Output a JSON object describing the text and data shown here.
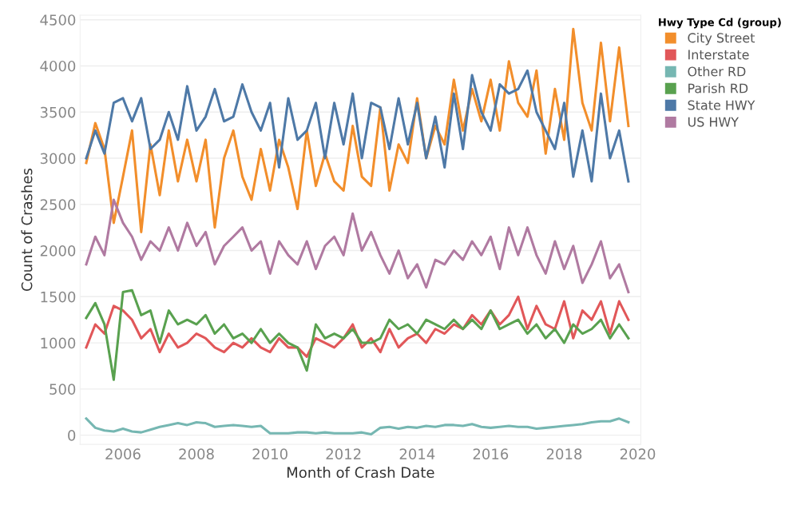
{
  "chart_data": {
    "type": "line",
    "xlabel": "Month of Crash Date",
    "ylabel": "Count of Crashes",
    "legend_title": "Hwy Type Cd (group)",
    "x": [
      "2005-01",
      "2005-04",
      "2005-07",
      "2005-10",
      "2006-01",
      "2006-04",
      "2006-07",
      "2006-10",
      "2007-01",
      "2007-04",
      "2007-07",
      "2007-10",
      "2008-01",
      "2008-04",
      "2008-07",
      "2008-10",
      "2009-01",
      "2009-04",
      "2009-07",
      "2009-10",
      "2010-01",
      "2010-04",
      "2010-07",
      "2010-10",
      "2011-01",
      "2011-04",
      "2011-07",
      "2011-10",
      "2012-01",
      "2012-04",
      "2012-07",
      "2012-10",
      "2013-01",
      "2013-04",
      "2013-07",
      "2013-10",
      "2014-01",
      "2014-04",
      "2014-07",
      "2014-10",
      "2015-01",
      "2015-04",
      "2015-07",
      "2015-10",
      "2016-01",
      "2016-04",
      "2016-07",
      "2016-10",
      "2017-01",
      "2017-04",
      "2017-07",
      "2017-10",
      "2018-01",
      "2018-04",
      "2018-07",
      "2018-10",
      "2019-01",
      "2019-04",
      "2019-07",
      "2019-10"
    ],
    "series": [
      {
        "name": "City Street",
        "color": "#f28e2b",
        "values": [
          2950,
          3380,
          3100,
          2300,
          2800,
          3300,
          2200,
          3150,
          2600,
          3300,
          2750,
          3200,
          2750,
          3200,
          2250,
          3000,
          3300,
          2800,
          2550,
          3100,
          2650,
          3200,
          2900,
          2450,
          3300,
          2700,
          3050,
          2750,
          2650,
          3350,
          2800,
          2700,
          3550,
          2650,
          3150,
          2950,
          3650,
          3000,
          3350,
          3150,
          3850,
          3300,
          3750,
          3400,
          3850,
          3300,
          4050,
          3600,
          3450,
          3950,
          3050,
          3750,
          3200,
          4400,
          3600,
          3300,
          4250,
          3400,
          4200,
          3350
        ]
      },
      {
        "name": "Interstate",
        "color": "#e15759",
        "values": [
          950,
          1200,
          1100,
          1400,
          1350,
          1250,
          1050,
          1150,
          900,
          1100,
          950,
          1000,
          1100,
          1050,
          950,
          900,
          1000,
          950,
          1050,
          950,
          900,
          1050,
          950,
          950,
          850,
          1050,
          1000,
          950,
          1050,
          1200,
          950,
          1050,
          900,
          1150,
          950,
          1050,
          1100,
          1000,
          1150,
          1100,
          1200,
          1150,
          1300,
          1200,
          1350,
          1200,
          1300,
          1500,
          1150,
          1400,
          1200,
          1150,
          1450,
          1050,
          1350,
          1250,
          1450,
          1100,
          1450,
          1250
        ]
      },
      {
        "name": "Other RD",
        "color": "#76b7b2",
        "values": [
          180,
          80,
          50,
          40,
          70,
          40,
          30,
          60,
          90,
          110,
          130,
          110,
          140,
          130,
          90,
          100,
          110,
          100,
          90,
          100,
          20,
          20,
          20,
          30,
          30,
          20,
          30,
          20,
          20,
          20,
          30,
          10,
          80,
          90,
          70,
          90,
          80,
          100,
          90,
          110,
          110,
          100,
          120,
          90,
          80,
          90,
          100,
          90,
          90,
          70,
          80,
          90,
          100,
          110,
          120,
          140,
          150,
          150,
          180,
          140
        ]
      },
      {
        "name": "Parish RD",
        "color": "#59a14f",
        "values": [
          1270,
          1430,
          1200,
          600,
          1550,
          1570,
          1300,
          1350,
          1000,
          1350,
          1200,
          1250,
          1200,
          1300,
          1100,
          1200,
          1050,
          1100,
          1000,
          1150,
          1000,
          1100,
          1000,
          950,
          700,
          1200,
          1050,
          1100,
          1050,
          1150,
          1000,
          1000,
          1050,
          1250,
          1150,
          1200,
          1100,
          1250,
          1200,
          1150,
          1250,
          1150,
          1250,
          1150,
          1350,
          1150,
          1200,
          1250,
          1100,
          1200,
          1050,
          1150,
          1000,
          1200,
          1100,
          1150,
          1250,
          1050,
          1200,
          1050
        ]
      },
      {
        "name": "State HWY",
        "color": "#4e79a7",
        "values": [
          3000,
          3300,
          3050,
          3600,
          3650,
          3400,
          3650,
          3100,
          3200,
          3500,
          3200,
          3780,
          3300,
          3450,
          3750,
          3400,
          3450,
          3800,
          3500,
          3300,
          3600,
          2900,
          3650,
          3200,
          3300,
          3600,
          3000,
          3600,
          3150,
          3700,
          3000,
          3600,
          3550,
          3100,
          3650,
          3150,
          3600,
          3000,
          3450,
          2900,
          3700,
          3100,
          3900,
          3500,
          3300,
          3800,
          3700,
          3750,
          3950,
          3500,
          3300,
          3100,
          3600,
          2800,
          3300,
          2750,
          3700,
          3000,
          3300,
          2750
        ]
      },
      {
        "name": "US HWY",
        "color": "#b07aa1",
        "values": [
          1850,
          2150,
          1950,
          2550,
          2300,
          2150,
          1900,
          2100,
          2000,
          2250,
          2000,
          2300,
          2050,
          2200,
          1850,
          2050,
          2150,
          2250,
          2000,
          2100,
          1750,
          2100,
          1950,
          1850,
          2100,
          1800,
          2050,
          2150,
          1950,
          2400,
          2000,
          2200,
          1950,
          1750,
          2000,
          1700,
          1850,
          1600,
          1900,
          1850,
          2000,
          1900,
          2100,
          1950,
          2150,
          1800,
          2250,
          1950,
          2250,
          1950,
          1750,
          2100,
          1800,
          2050,
          1650,
          1850,
          2100,
          1700,
          1850,
          1550
        ]
      }
    ],
    "xlim": [
      "2004-11",
      "2020-02"
    ],
    "xticks": [
      {
        "value": "2006",
        "label": "2006"
      },
      {
        "value": "2008",
        "label": "2008"
      },
      {
        "value": "2010",
        "label": "2010"
      },
      {
        "value": "2012",
        "label": "2012"
      },
      {
        "value": "2014",
        "label": "2014"
      },
      {
        "value": "2016",
        "label": "2016"
      },
      {
        "value": "2018",
        "label": "2018"
      },
      {
        "value": "2020",
        "label": "2020"
      }
    ],
    "ylim": [
      -100,
      4550
    ],
    "yticks": [
      0,
      500,
      1000,
      1500,
      2000,
      2500,
      3000,
      3500,
      4000,
      4500
    ],
    "grid": "y",
    "legend": "top right",
    "marker": "none",
    "line_style": "solid"
  }
}
